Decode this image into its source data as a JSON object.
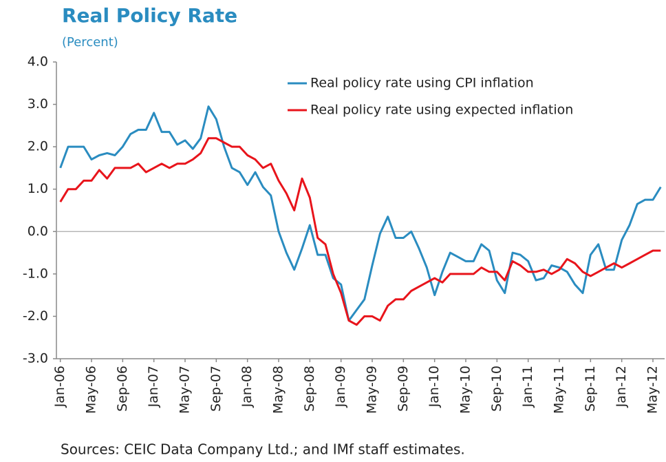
{
  "chart_data": {
    "type": "line",
    "title": "Real Policy Rate",
    "subtitle": "(Percent)",
    "source": "Sources: CEIC Data Company Ltd.; and IMf staff estimates.",
    "categories": [
      "Jan-06",
      null,
      null,
      null,
      "May-06",
      null,
      null,
      null,
      "Sep-06",
      null,
      null,
      null,
      "Jan-07",
      null,
      null,
      null,
      "May-07",
      null,
      null,
      null,
      "Sep-07",
      null,
      null,
      null,
      "Jan-08",
      null,
      null,
      null,
      "May-08",
      null,
      null,
      null,
      "Sep-08",
      null,
      null,
      null,
      "Jan-09",
      null,
      null,
      null,
      "May-09",
      null,
      null,
      null,
      "Sep-09",
      null,
      null,
      null,
      "Jan-10",
      null,
      null,
      null,
      "May-10",
      null,
      null,
      null,
      "Sep-10",
      null,
      null,
      null,
      "Jan-11",
      null,
      null,
      null,
      "May-11",
      null,
      null,
      null,
      "Sep-11",
      null,
      null,
      null,
      "Jan-12",
      null,
      null,
      null,
      "May-12",
      null
    ],
    "series": [
      {
        "name": "Real policy rate using CPI inflation",
        "color": "#2a8cc0",
        "values": [
          1.5,
          2.0,
          2.0,
          2.0,
          1.7,
          1.8,
          1.85,
          1.8,
          2.0,
          2.3,
          2.4,
          2.4,
          2.8,
          2.35,
          2.35,
          2.05,
          2.15,
          1.95,
          2.2,
          2.95,
          2.65,
          2.0,
          1.5,
          1.4,
          1.1,
          1.4,
          1.05,
          0.85,
          0.0,
          -0.5,
          -0.9,
          -0.4,
          0.15,
          -0.55,
          -0.55,
          -1.1,
          -1.25,
          -2.1,
          -1.85,
          -1.6,
          -0.8,
          -0.05,
          0.35,
          -0.15,
          -0.15,
          0.0,
          -0.4,
          -0.85,
          -1.5,
          -0.95,
          -0.5,
          -0.6,
          -0.7,
          -0.7,
          -0.3,
          -0.45,
          -1.15,
          -1.45,
          -0.5,
          -0.55,
          -0.7,
          -1.15,
          -1.1,
          -0.8,
          -0.85,
          -0.95,
          -1.25,
          -1.45,
          -0.55,
          -0.3,
          -0.9,
          -0.9,
          -0.2,
          0.15,
          0.65,
          0.75,
          0.75,
          1.05
        ]
      },
      {
        "name": "Real policy rate using expected inflation",
        "color": "#e8141b",
        "values": [
          0.7,
          1.0,
          1.0,
          1.2,
          1.2,
          1.45,
          1.25,
          1.5,
          1.5,
          1.5,
          1.6,
          1.4,
          1.5,
          1.6,
          1.5,
          1.6,
          1.6,
          1.7,
          1.85,
          2.2,
          2.2,
          2.1,
          2.0,
          2.0,
          1.8,
          1.7,
          1.5,
          1.6,
          1.2,
          0.9,
          0.5,
          1.25,
          0.8,
          -0.15,
          -0.3,
          -1.0,
          -1.45,
          -2.1,
          -2.2,
          -2.0,
          -2.0,
          -2.1,
          -1.75,
          -1.6,
          -1.6,
          -1.4,
          -1.3,
          -1.2,
          -1.1,
          -1.2,
          -1.0,
          -1.0,
          -1.0,
          -1.0,
          -0.85,
          -0.95,
          -0.95,
          -1.15,
          -0.7,
          -0.8,
          -0.95,
          -0.95,
          -0.9,
          -1.0,
          -0.9,
          -0.65,
          -0.75,
          -0.95,
          -1.05,
          -0.95,
          -0.85,
          -0.75,
          -0.85,
          -0.75,
          -0.65,
          -0.55,
          -0.45,
          -0.45
        ]
      }
    ],
    "ylim": [
      -3,
      4
    ],
    "yticks": [
      {
        "value": -3,
        "label": "-3.0"
      },
      {
        "value": -2,
        "label": "-2.0"
      },
      {
        "value": -1,
        "label": "-1.0"
      },
      {
        "value": 0,
        "label": "0.0"
      },
      {
        "value": 1,
        "label": "1.0"
      },
      {
        "value": 2,
        "label": "2.0"
      },
      {
        "value": 3,
        "label": "3.0"
      },
      {
        "value": 4,
        "label": "4.0"
      }
    ],
    "legend": "upper right"
  }
}
